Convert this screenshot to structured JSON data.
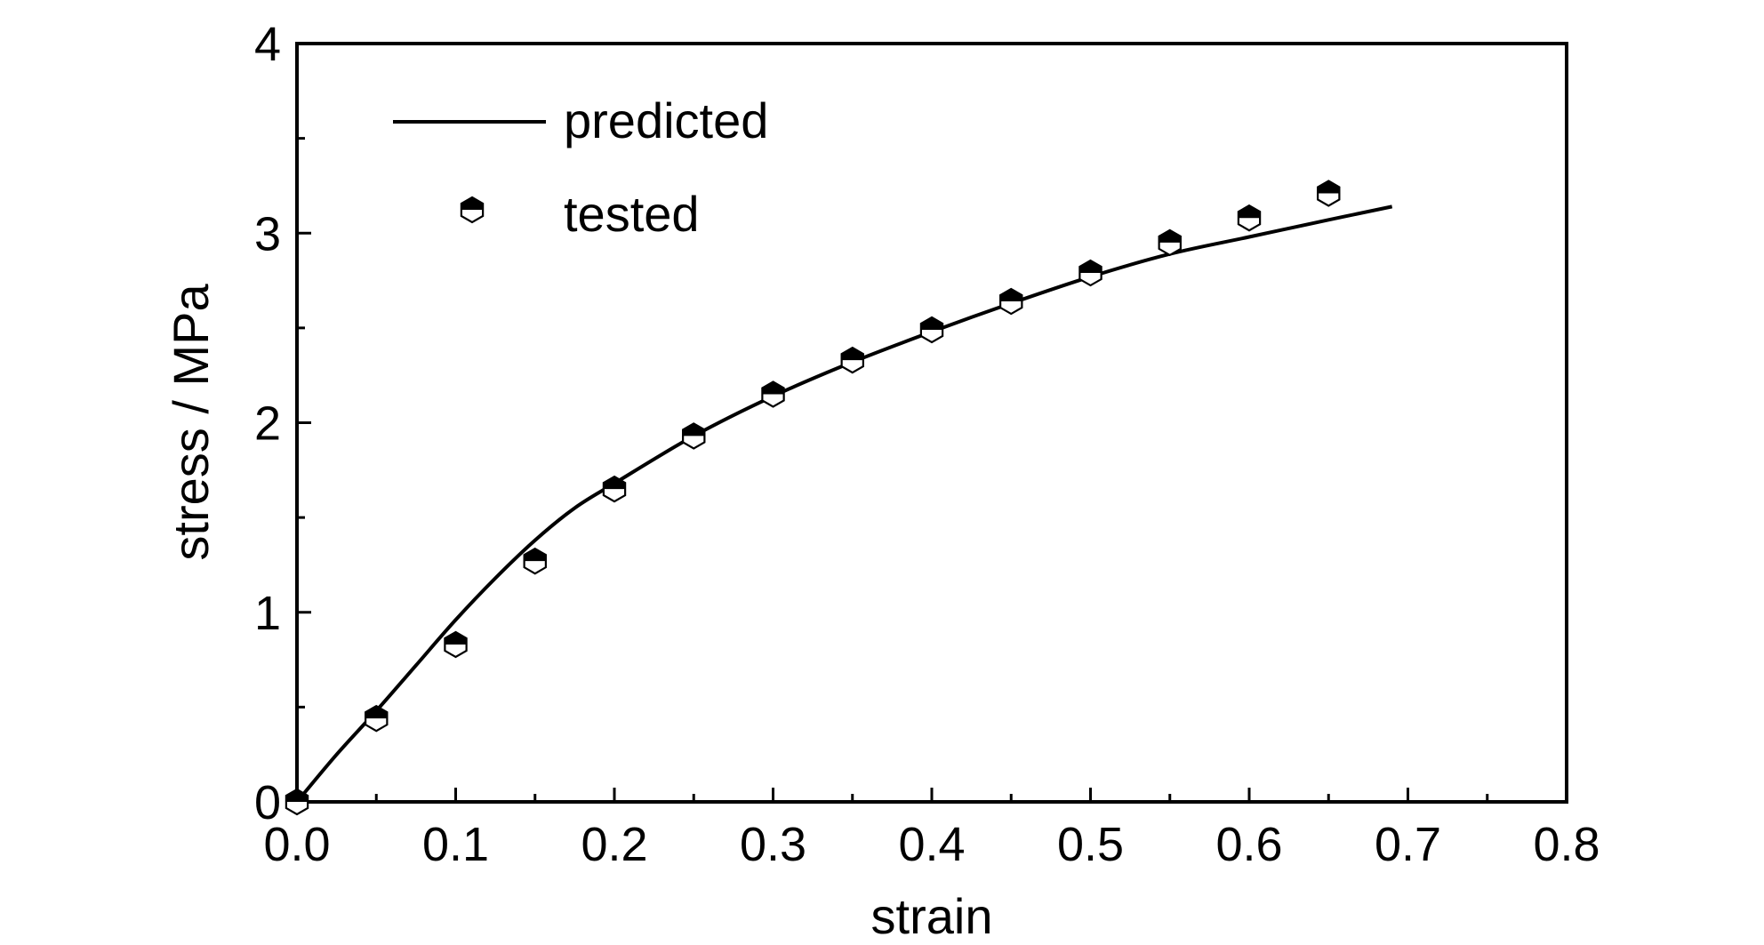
{
  "chart_data": {
    "type": "scatter",
    "title": "",
    "xlabel": "strain",
    "ylabel": "stress / MPa",
    "xlim": [
      0.0,
      0.8
    ],
    "ylim": [
      0,
      4
    ],
    "x_ticks": [
      "0.0",
      "0.1",
      "0.2",
      "0.3",
      "0.4",
      "0.5",
      "0.6",
      "0.7",
      "0.8"
    ],
    "y_ticks": [
      "0",
      "1",
      "2",
      "3",
      "4"
    ],
    "grid": false,
    "legend_position": "top-left",
    "series": [
      {
        "name": "predicted",
        "type": "line",
        "color": "#000000",
        "x": [
          0.0,
          0.025,
          0.05,
          0.075,
          0.1,
          0.125,
          0.15,
          0.175,
          0.2,
          0.25,
          0.3,
          0.35,
          0.4,
          0.45,
          0.5,
          0.55,
          0.6,
          0.65,
          0.69
        ],
        "y": [
          0.0,
          0.25,
          0.48,
          0.72,
          0.96,
          1.18,
          1.38,
          1.55,
          1.68,
          1.93,
          2.14,
          2.32,
          2.48,
          2.63,
          2.77,
          2.89,
          2.98,
          3.07,
          3.14
        ]
      },
      {
        "name": "tested",
        "type": "scatter",
        "marker": "half-filled-hexagon",
        "color": "#000000",
        "x": [
          0.0,
          0.05,
          0.1,
          0.15,
          0.2,
          0.25,
          0.3,
          0.35,
          0.4,
          0.45,
          0.5,
          0.55,
          0.6,
          0.65
        ],
        "y": [
          0.0,
          0.44,
          0.83,
          1.27,
          1.65,
          1.93,
          2.15,
          2.33,
          2.49,
          2.64,
          2.79,
          2.95,
          3.08,
          3.21
        ]
      }
    ]
  }
}
